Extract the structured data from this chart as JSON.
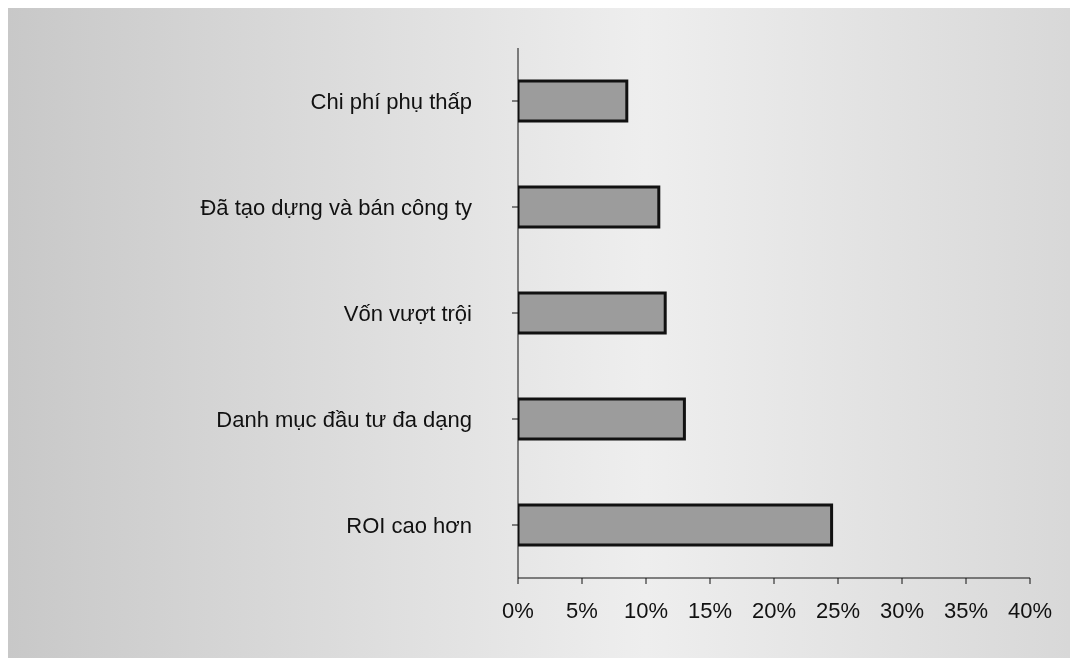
{
  "chart_data": {
    "type": "bar",
    "orientation": "horizontal",
    "categories": [
      "Chi phí phụ thấp",
      "Đã tạo dựng và bán công ty",
      "Vốn vượt trội",
      "Danh mục đầu tư đa dạng",
      "ROI cao hơn"
    ],
    "values": [
      8.5,
      11,
      11.5,
      13,
      24.5
    ],
    "color": "#9c9c9c",
    "xlim": [
      0,
      40
    ],
    "xticks": [
      {
        "value": 0,
        "label": "0%"
      },
      {
        "value": 5,
        "label": "5%"
      },
      {
        "value": 10,
        "label": "10%"
      },
      {
        "value": 15,
        "label": "15%"
      },
      {
        "value": 20,
        "label": "20%"
      },
      {
        "value": 25,
        "label": "25%"
      },
      {
        "value": 30,
        "label": "30%"
      },
      {
        "value": 35,
        "label": "35%"
      },
      {
        "value": 40,
        "label": "40%"
      }
    ],
    "grid": false
  }
}
